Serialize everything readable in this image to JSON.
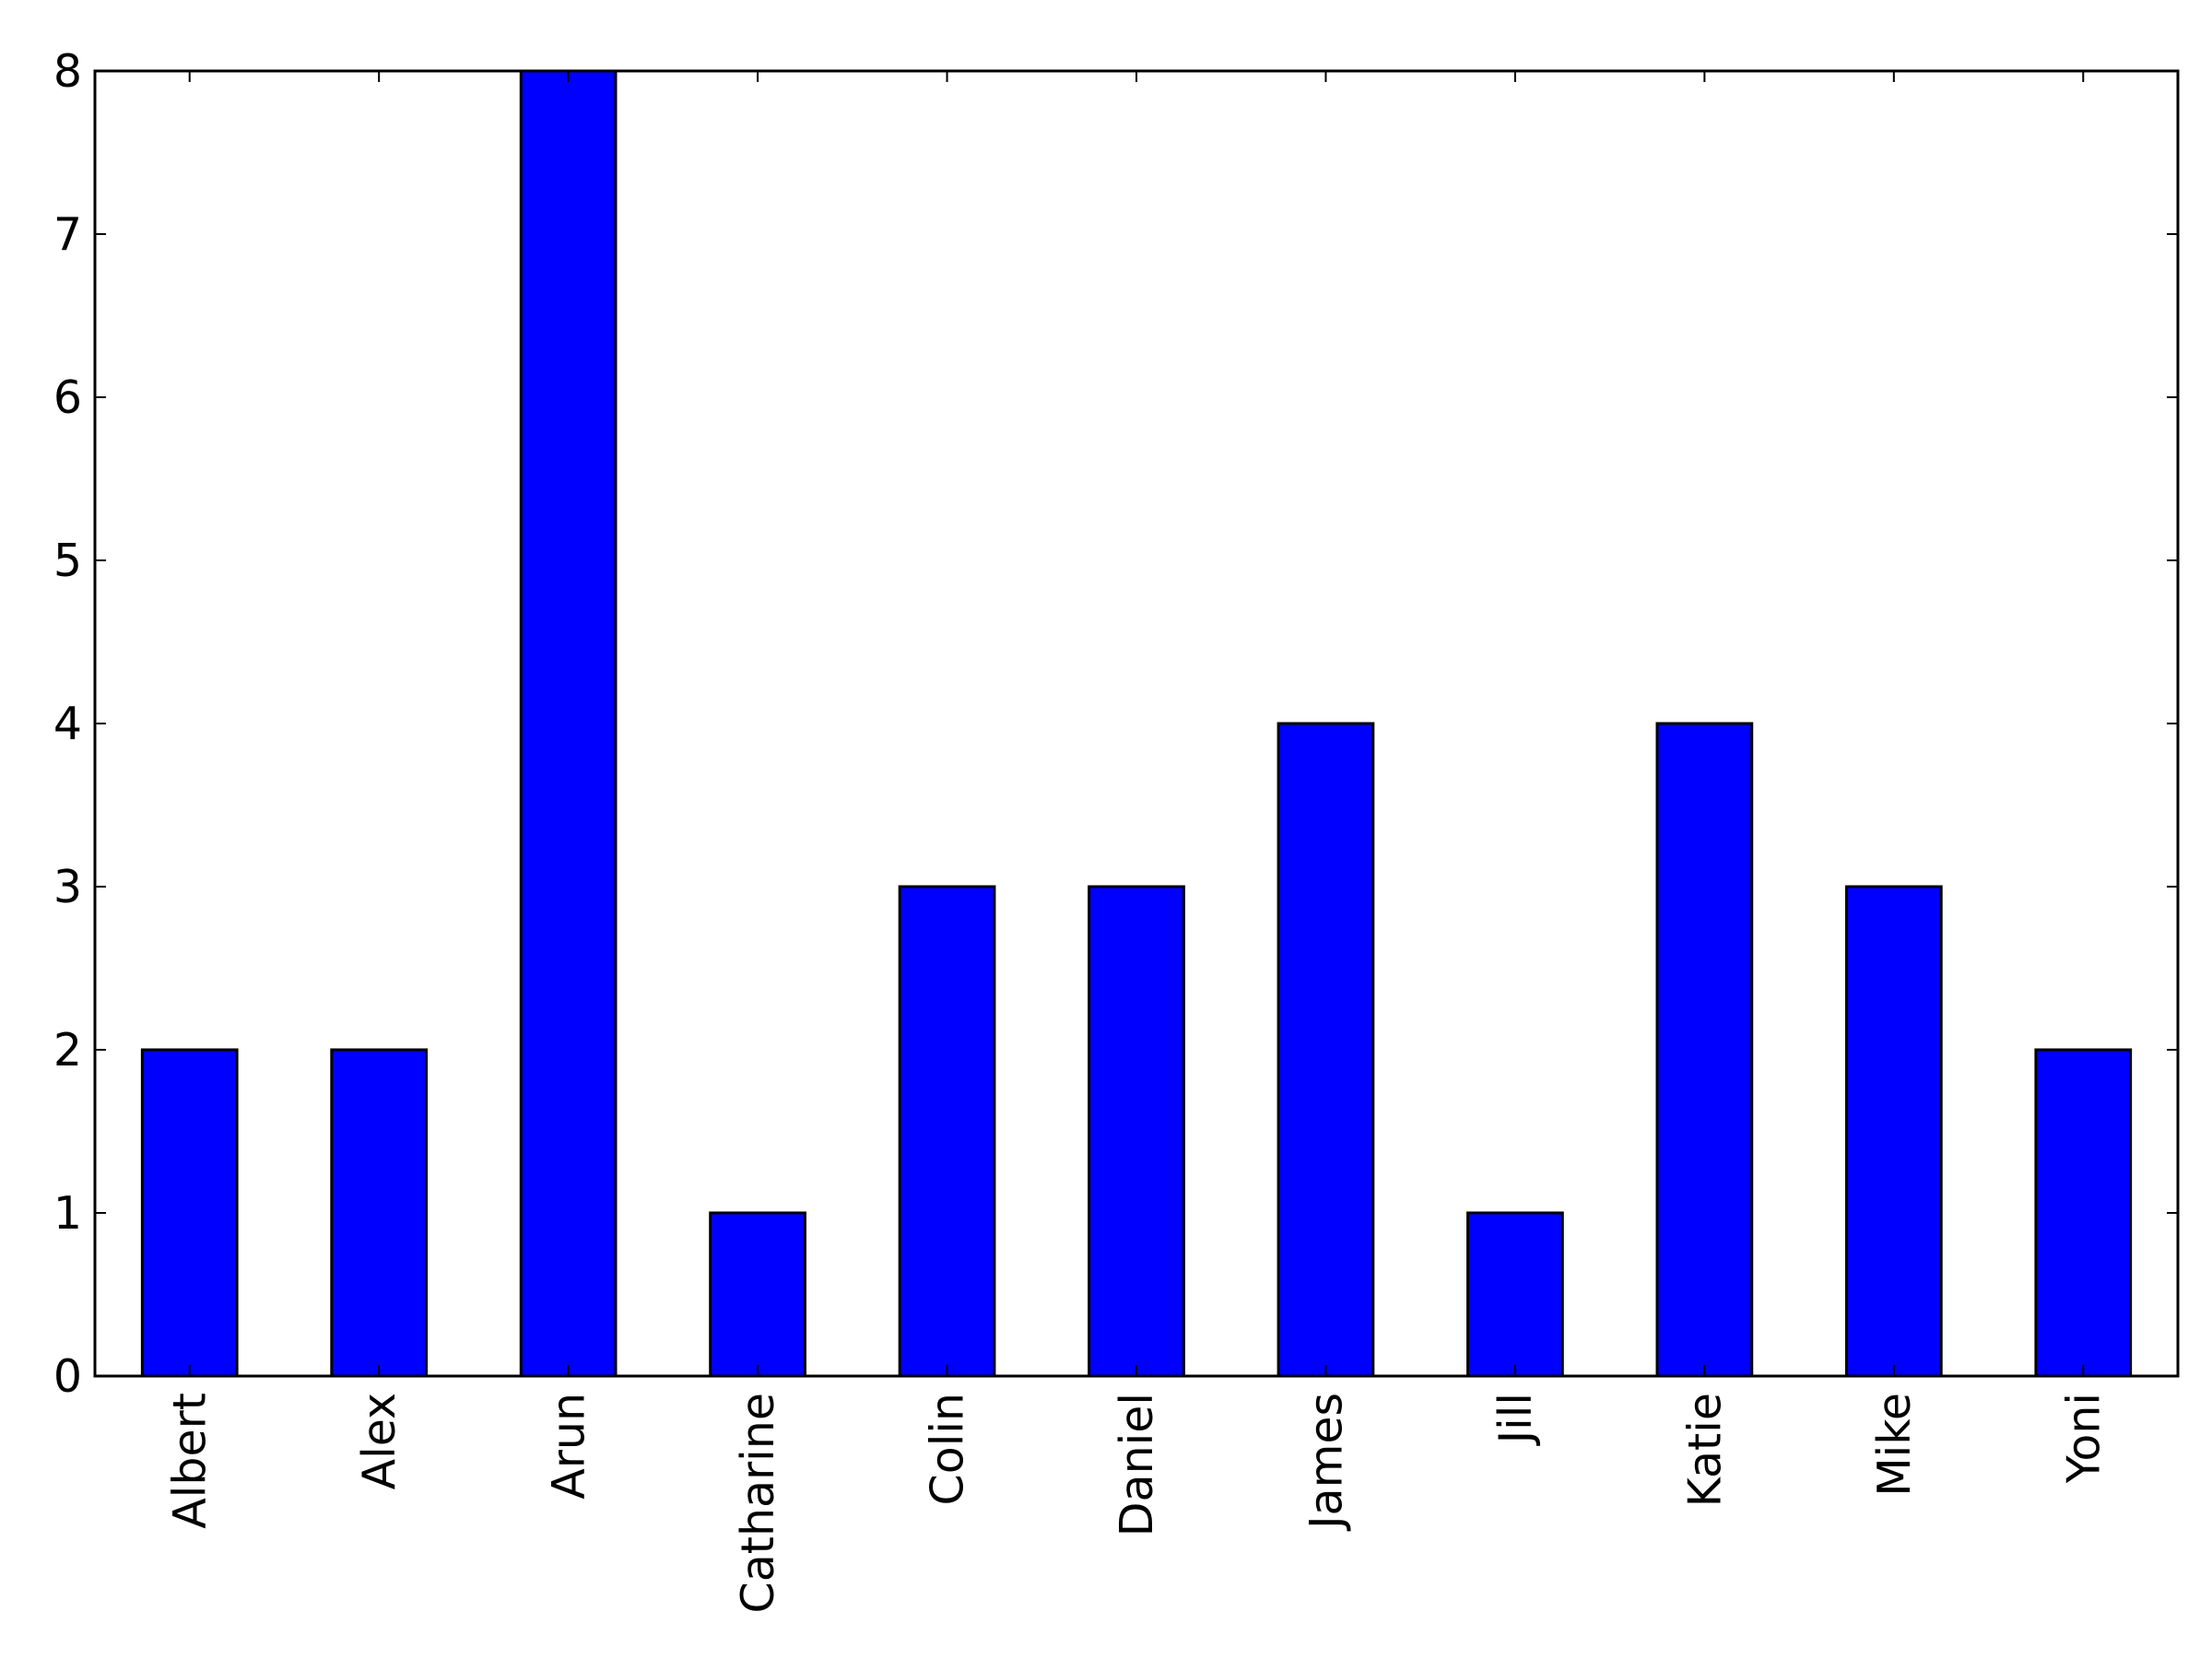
{
  "chart_data": {
    "type": "bar",
    "categories": [
      "Albert",
      "Alex",
      "Arun",
      "Catharine",
      "Colin",
      "Daniel",
      "James",
      "Jill",
      "Katie",
      "Mike",
      "Yoni"
    ],
    "values": [
      2,
      2,
      8,
      1,
      3,
      3,
      4,
      1,
      4,
      3,
      2
    ],
    "color": "#0000ff",
    "ylim": [
      0,
      8
    ],
    "yticks": [
      0,
      1,
      2,
      3,
      4,
      5,
      6,
      7,
      8
    ],
    "grid": false
  }
}
